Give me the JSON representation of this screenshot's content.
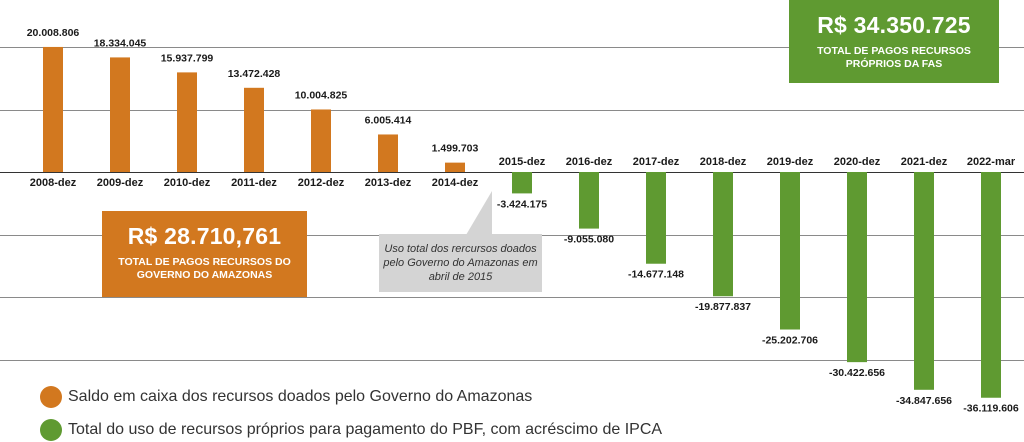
{
  "chart_data": {
    "type": "bar",
    "categories": [
      "2008-dez",
      "2009-dez",
      "2010-dez",
      "2011-dez",
      "2012-dez",
      "2013-dez",
      "2014-dez",
      "2015-dez",
      "2016-dez",
      "2017-dez",
      "2018-dez",
      "2019-dez",
      "2020-dez",
      "2021-dez",
      "2022-mar"
    ],
    "values": [
      20008806,
      18334045,
      15937799,
      13472428,
      10004825,
      6005414,
      1499703,
      -3424175,
      -9055080,
      -14677148,
      -19877837,
      -25202706,
      -30422656,
      -34847656,
      -36119606
    ],
    "value_labels": [
      "20.008.806",
      "18.334.045",
      "15.937.799",
      "13.472.428",
      "10.004.825",
      "6.005.414",
      "1.499.703",
      "-3.424.175",
      "-9.055.080",
      "-14.677.148",
      "-19.877.837",
      "-25.202.706",
      "-30.422.656",
      "-34.847.656",
      "-36.119.606"
    ],
    "series_index": [
      0,
      0,
      0,
      0,
      0,
      0,
      0,
      1,
      1,
      1,
      1,
      1,
      1,
      1,
      1
    ],
    "series": [
      {
        "name": "Saldo em caixa dos recursos doados pelo Governo do Amazonas",
        "color": "#d2781f"
      },
      {
        "name": "Total do uso de recursos próprios para pagamento do PBF, com acréscimo de IPCA",
        "color": "#5f9a31"
      }
    ],
    "ylim": [
      -40000000,
      20000000
    ],
    "grid": true,
    "legend_placement": "bottom-left"
  },
  "annotations": {
    "orange_box": {
      "value": "R$ 28.710,761",
      "caption": "TOTAL DE PAGOS RECURSOS DO GOVERNO DO AMAZONAS"
    },
    "green_box": {
      "value": "R$ 34.350.725",
      "caption": "TOTAL DE PAGOS RECURSOS PRÓPRIOS DA FAS"
    },
    "callout": "Uso total dos rercursos doados pelo Governo do Amazonas em abril de 2015"
  },
  "legend": [
    {
      "label": "Saldo em caixa dos recursos doados pelo Governo do Amazonas",
      "color": "#d2781f"
    },
    {
      "label": "Total do uso de recursos próprios para pagamento do PBF, com acréscimo de IPCA",
      "color": "#5f9a31"
    }
  ]
}
